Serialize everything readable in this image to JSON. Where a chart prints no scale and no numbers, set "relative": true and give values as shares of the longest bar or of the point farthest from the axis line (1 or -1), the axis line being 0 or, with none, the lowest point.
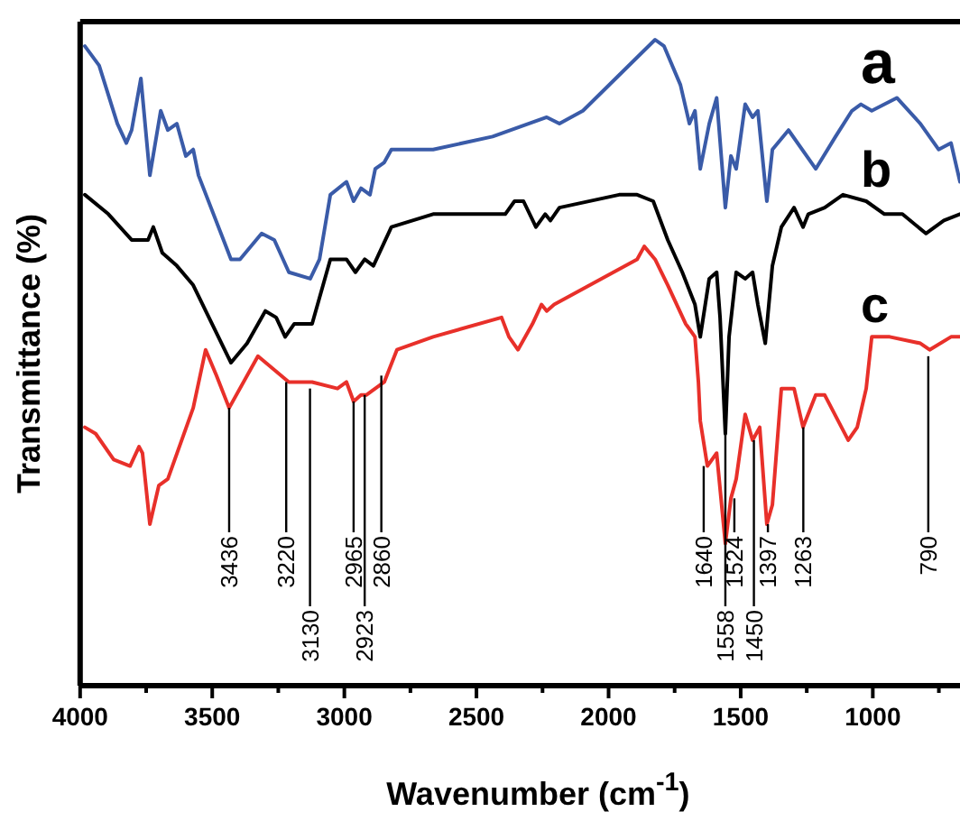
{
  "chart_data": {
    "type": "line",
    "relative": true,
    "xlabel": "Wavenumber (cm$^{-1}$)",
    "ylabel": "Transmittance (%)",
    "xlim": [
      4000,
      670
    ],
    "xticks": [
      4000,
      {
        "value": 3750,
        "label": null
      },
      3500,
      {
        "value": 3250,
        "label": null
      },
      3000,
      {
        "value": 2750,
        "label": null
      },
      2500,
      {
        "value": 2250,
        "label": null
      },
      2000,
      {
        "value": 1750,
        "label": null
      },
      1500,
      {
        "value": 1250,
        "label": null
      },
      1000,
      {
        "value": 750,
        "label": null
      }
    ],
    "series": [
      {
        "name": "a",
        "color": "#3a5ba8",
        "x": [
          3982,
          3928,
          3859,
          3825,
          3805,
          3770,
          3736,
          3695,
          3668,
          3634,
          3600,
          3572,
          3552,
          3429,
          3395,
          3313,
          3265,
          3210,
          3129,
          3094,
          3053,
          2992,
          2965,
          2937,
          2903,
          2883,
          2849,
          2822,
          2664,
          2439,
          2234,
          2186,
          2097,
          1824,
          1790,
          1728,
          1694,
          1673,
          1653,
          1619,
          1591,
          1558,
          1537,
          1517,
          1483,
          1455,
          1435,
          1401,
          1380,
          1319,
          1216,
          1141,
          1079,
          1045,
          1004,
          909,
          820,
          751,
          704,
          670
        ],
        "values": [
          0.99,
          0.96,
          0.87,
          0.84,
          0.86,
          0.94,
          0.79,
          0.89,
          0.86,
          0.87,
          0.82,
          0.83,
          0.79,
          0.66,
          0.66,
          0.7,
          0.69,
          0.64,
          0.63,
          0.66,
          0.76,
          0.78,
          0.75,
          0.77,
          0.76,
          0.8,
          0.81,
          0.83,
          0.83,
          0.85,
          0.88,
          0.87,
          0.89,
          1.0,
          0.99,
          0.93,
          0.87,
          0.89,
          0.8,
          0.87,
          0.91,
          0.74,
          0.82,
          0.8,
          0.9,
          0.88,
          0.89,
          0.75,
          0.83,
          0.86,
          0.8,
          0.85,
          0.89,
          0.9,
          0.89,
          0.91,
          0.87,
          0.83,
          0.84,
          0.78
        ]
      },
      {
        "name": "b",
        "color": "#000000",
        "x": [
          3982,
          3893,
          3805,
          3743,
          3723,
          3689,
          3634,
          3572,
          3429,
          3368,
          3299,
          3258,
          3224,
          3190,
          3122,
          3053,
          2992,
          2958,
          2923,
          2890,
          2822,
          2664,
          2391,
          2356,
          2322,
          2275,
          2240,
          2220,
          2186,
          1960,
          1892,
          1831,
          1776,
          1721,
          1673,
          1653,
          1619,
          1591,
          1578,
          1558,
          1544,
          1517,
          1483,
          1455,
          1435,
          1407,
          1380,
          1346,
          1298,
          1264,
          1244,
          1182,
          1113,
          1025,
          956,
          888,
          799,
          731,
          670
        ],
        "values": [
          0.76,
          0.73,
          0.69,
          0.69,
          0.71,
          0.67,
          0.65,
          0.62,
          0.5,
          0.53,
          0.58,
          0.57,
          0.54,
          0.56,
          0.56,
          0.66,
          0.66,
          0.64,
          0.66,
          0.65,
          0.71,
          0.73,
          0.73,
          0.75,
          0.75,
          0.71,
          0.73,
          0.72,
          0.74,
          0.76,
          0.76,
          0.75,
          0.69,
          0.64,
          0.59,
          0.54,
          0.63,
          0.64,
          0.57,
          0.39,
          0.54,
          0.64,
          0.63,
          0.64,
          0.59,
          0.53,
          0.65,
          0.71,
          0.74,
          0.71,
          0.73,
          0.74,
          0.76,
          0.75,
          0.73,
          0.73,
          0.7,
          0.72,
          0.73
        ]
      },
      {
        "name": "c",
        "color": "#e8302a",
        "x": [
          3982,
          3941,
          3873,
          3811,
          3777,
          3764,
          3736,
          3702,
          3668,
          3572,
          3525,
          3484,
          3436,
          3327,
          3210,
          3122,
          3026,
          2992,
          2965,
          2937,
          2917,
          2849,
          2801,
          2664,
          2405,
          2377,
          2343,
          2288,
          2254,
          2234,
          2206,
          1892,
          1865,
          1824,
          1776,
          1708,
          1673,
          1660,
          1653,
          1626,
          1591,
          1558,
          1537,
          1517,
          1483,
          1455,
          1428,
          1401,
          1380,
          1346,
          1298,
          1264,
          1216,
          1182,
          1093,
          1059,
          1025,
          1004,
          936,
          820,
          785,
          704,
          670
        ],
        "values": [
          0.4,
          0.39,
          0.35,
          0.34,
          0.37,
          0.36,
          0.25,
          0.31,
          0.32,
          0.43,
          0.52,
          0.48,
          0.43,
          0.51,
          0.47,
          0.47,
          0.46,
          0.47,
          0.44,
          0.45,
          0.45,
          0.47,
          0.52,
          0.54,
          0.57,
          0.54,
          0.52,
          0.56,
          0.59,
          0.58,
          0.59,
          0.66,
          0.68,
          0.66,
          0.62,
          0.56,
          0.54,
          0.47,
          0.41,
          0.34,
          0.36,
          0.22,
          0.29,
          0.32,
          0.42,
          0.38,
          0.4,
          0.25,
          0.28,
          0.46,
          0.46,
          0.4,
          0.45,
          0.45,
          0.38,
          0.4,
          0.46,
          0.54,
          0.54,
          0.53,
          0.52,
          0.54,
          0.54
        ]
      }
    ],
    "annotations": [
      {
        "text": "3436",
        "x": 3436,
        "y": 0.43
      },
      {
        "text": "3220",
        "x": 3220,
        "y": 0.47
      },
      {
        "text": "3130",
        "x": 3130,
        "y": 0.46
      },
      {
        "text": "2965",
        "x": 2965,
        "y": 0.44
      },
      {
        "text": "2923",
        "x": 2923,
        "y": 0.45
      },
      {
        "text": "2860",
        "x": 2860,
        "y": 0.48
      },
      {
        "text": "1640",
        "x": 1640,
        "y": 0.34
      },
      {
        "text": "1558",
        "x": 1558,
        "y": 0.39
      },
      {
        "text": "1524",
        "x": 1524,
        "y": 0.29
      },
      {
        "text": "1450",
        "x": 1450,
        "y": 0.38
      },
      {
        "text": "1397",
        "x": 1397,
        "y": 0.25
      },
      {
        "text": "1263",
        "x": 1263,
        "y": 0.4
      },
      {
        "text": "790",
        "x": 790,
        "y": 0.51
      }
    ]
  }
}
